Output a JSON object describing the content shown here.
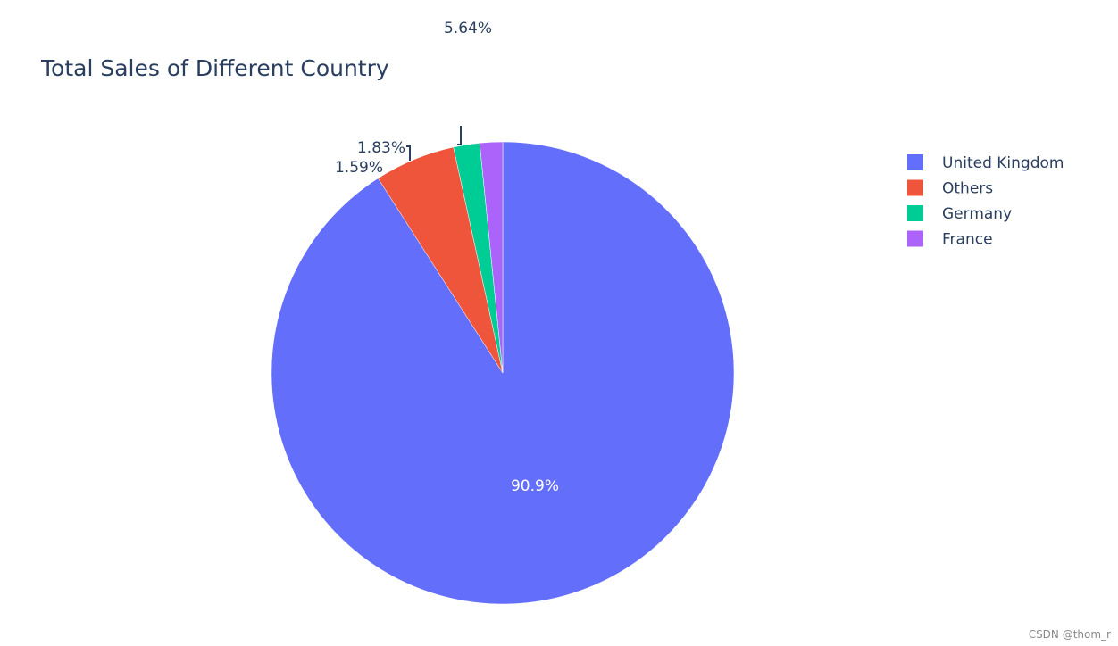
{
  "chart_data": {
    "type": "pie",
    "title": "Total Sales of Different Country",
    "labels": [
      "United Kingdom",
      "Others",
      "Germany",
      "France"
    ],
    "values": [
      90.9,
      5.64,
      1.83,
      1.59
    ],
    "value_labels": [
      "90.9%",
      "5.64%",
      "1.83%",
      "1.59%"
    ],
    "colors": [
      "#636efa",
      "#EF553B",
      "#00cc96",
      "#ab63fa"
    ],
    "sort": "descending",
    "direction": "clockwise",
    "start_angle": "12 o'clock",
    "legend_position": "top-right"
  },
  "watermark": "CSDN @thom_r"
}
